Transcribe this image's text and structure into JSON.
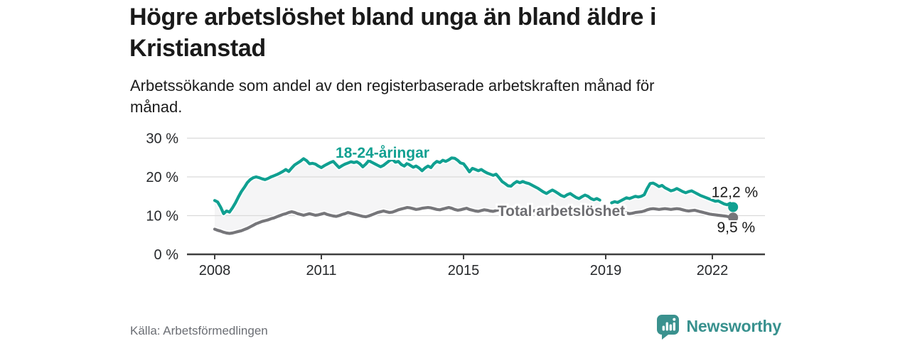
{
  "header": {
    "title_lines": [
      "Högre arbetslöshet bland unga än bland äldre i",
      "Kristianstad"
    ],
    "subtitle_lines": [
      "Arbetssökande som andel av den registerbaserade arbetskraften månad för",
      "månad."
    ]
  },
  "footer": {
    "source": "Källa: Arbetsförmedlingen",
    "brand": "Newsworthy",
    "brand_color": "#38918e"
  },
  "chart_data": {
    "type": "line",
    "title": "Högre arbetslöshet bland unga än bland äldre i Kristianstad",
    "subtitle": "Arbetssökande som andel av den registerbaserade arbetskraften månad för månad.",
    "unit": "percent",
    "x_start": 2008.0,
    "x_step_months": 1,
    "xlim": [
      2007.22,
      2023.48
    ],
    "ylim": [
      0,
      30
    ],
    "yticks": [
      0,
      10,
      20,
      30
    ],
    "ytick_suffix": " %",
    "xticks": [
      2008,
      2011,
      2015,
      2019,
      2022
    ],
    "grid": "horizontal",
    "legend_position": "inline-labels",
    "band_fill": "#f5f5f6",
    "colors": {
      "grid": "#dadada",
      "axis": "#3f3f3f",
      "text": "#26282b",
      "value_label": "#1a1a1a"
    },
    "series": [
      {
        "name": "18-24-åringar",
        "color": "#10a091",
        "end_label": "12,2 %",
        "end_value": 12.2,
        "label_anchor": {
          "x": 2012.72,
          "y": 25.0
        },
        "values": [
          13.9,
          13.5,
          12.2,
          10.5,
          11.2,
          10.9,
          12.0,
          13.3,
          14.8,
          16.2,
          17.3,
          18.5,
          19.3,
          19.8,
          20.0,
          19.8,
          19.5,
          19.3,
          19.6,
          20.0,
          20.3,
          20.6,
          21.0,
          21.4,
          21.9,
          21.4,
          22.3,
          23.1,
          23.6,
          24.1,
          24.7,
          24.2,
          23.4,
          23.5,
          23.3,
          22.8,
          22.4,
          22.9,
          23.3,
          23.7,
          24.0,
          23.2,
          22.4,
          22.9,
          23.3,
          23.6,
          23.9,
          23.7,
          23.9,
          23.4,
          22.6,
          23.3,
          24.2,
          23.8,
          23.4,
          23.0,
          22.6,
          23.0,
          23.6,
          24.2,
          24.5,
          23.8,
          24.0,
          23.2,
          22.8,
          23.5,
          23.0,
          22.5,
          22.8,
          22.3,
          21.6,
          22.3,
          22.8,
          22.4,
          23.4,
          24.0,
          23.7,
          24.3,
          24.0,
          24.4,
          24.9,
          24.8,
          24.3,
          23.6,
          23.4,
          22.4,
          21.3,
          22.2,
          21.9,
          21.6,
          21.9,
          21.4,
          21.0,
          20.7,
          20.4,
          20.7,
          19.8,
          18.8,
          18.3,
          17.7,
          17.6,
          18.3,
          18.8,
          18.5,
          18.8,
          18.5,
          18.3,
          17.9,
          17.5,
          17.1,
          16.6,
          16.1,
          15.7,
          16.2,
          16.6,
          16.2,
          15.7,
          15.2,
          14.9,
          15.4,
          15.7,
          15.2,
          14.7,
          14.4,
          14.9,
          15.3,
          15.0,
          14.4,
          14.1,
          14.4,
          14.0,
          null,
          null,
          null,
          13.3,
          13.6,
          13.4,
          13.8,
          14.2,
          14.6,
          14.4,
          14.7,
          15.0,
          14.8,
          15.0,
          15.4,
          17.0,
          18.3,
          18.4,
          18.0,
          17.5,
          17.8,
          17.2,
          16.8,
          16.4,
          16.6,
          17.0,
          16.6,
          16.2,
          15.9,
          16.2,
          16.4,
          16.0,
          15.6,
          15.2,
          14.9,
          14.6,
          14.3,
          14.0,
          13.7,
          13.8,
          13.4,
          13.0,
          12.8,
          13.2,
          12.2
        ]
      },
      {
        "name": "Total arbetslöshet",
        "color": "#76767a",
        "label_color": "#6e6e72",
        "end_label": "9,5 %",
        "end_value": 9.5,
        "label_anchor": {
          "x": 2017.75,
          "y": 9.9
        },
        "values": [
          6.5,
          6.2,
          6.0,
          5.7,
          5.5,
          5.4,
          5.5,
          5.7,
          5.9,
          6.1,
          6.4,
          6.7,
          7.1,
          7.5,
          7.9,
          8.2,
          8.5,
          8.7,
          8.9,
          9.2,
          9.4,
          9.7,
          10.0,
          10.3,
          10.5,
          10.8,
          11.0,
          10.8,
          10.5,
          10.3,
          10.1,
          10.3,
          10.5,
          10.3,
          10.1,
          10.2,
          10.4,
          10.6,
          10.3,
          10.1,
          9.9,
          9.8,
          10.0,
          10.3,
          10.5,
          10.8,
          10.6,
          10.4,
          10.2,
          10.0,
          9.8,
          9.7,
          9.9,
          10.2,
          10.5,
          10.8,
          11.0,
          11.2,
          11.0,
          10.8,
          10.9,
          11.2,
          11.5,
          11.7,
          11.9,
          12.1,
          12.0,
          11.8,
          11.6,
          11.7,
          11.9,
          12.0,
          12.1,
          12.0,
          11.8,
          11.6,
          11.5,
          11.7,
          11.9,
          12.1,
          11.9,
          11.6,
          11.4,
          11.5,
          11.7,
          11.9,
          11.6,
          11.4,
          11.2,
          11.1,
          11.3,
          11.5,
          11.4,
          11.2,
          11.1,
          11.3,
          11.5,
          11.7,
          11.5,
          11.3,
          11.2,
          11.4,
          11.6,
          11.8,
          11.6,
          11.4,
          11.2,
          11.1,
          11.3,
          11.5,
          11.3,
          11.1,
          10.9,
          10.8,
          11.0,
          11.2,
          11.0,
          10.8,
          10.6,
          10.5,
          10.6,
          10.8,
          10.6,
          10.4,
          10.2,
          10.1,
          10.3,
          10.5,
          10.4,
          10.2,
          10.1,
          10.0,
          10.2,
          10.4,
          10.3,
          10.2,
          10.4,
          10.6,
          10.8,
          10.7,
          10.5,
          10.6,
          10.8,
          10.9,
          11.0,
          11.2,
          11.5,
          11.7,
          11.8,
          11.7,
          11.6,
          11.7,
          11.8,
          11.7,
          11.6,
          11.7,
          11.8,
          11.7,
          11.5,
          11.3,
          11.2,
          11.3,
          11.4,
          11.2,
          11.0,
          10.8,
          10.6,
          10.4,
          10.3,
          10.2,
          10.1,
          10.0,
          9.9,
          9.8,
          9.6,
          9.5
        ]
      }
    ]
  }
}
